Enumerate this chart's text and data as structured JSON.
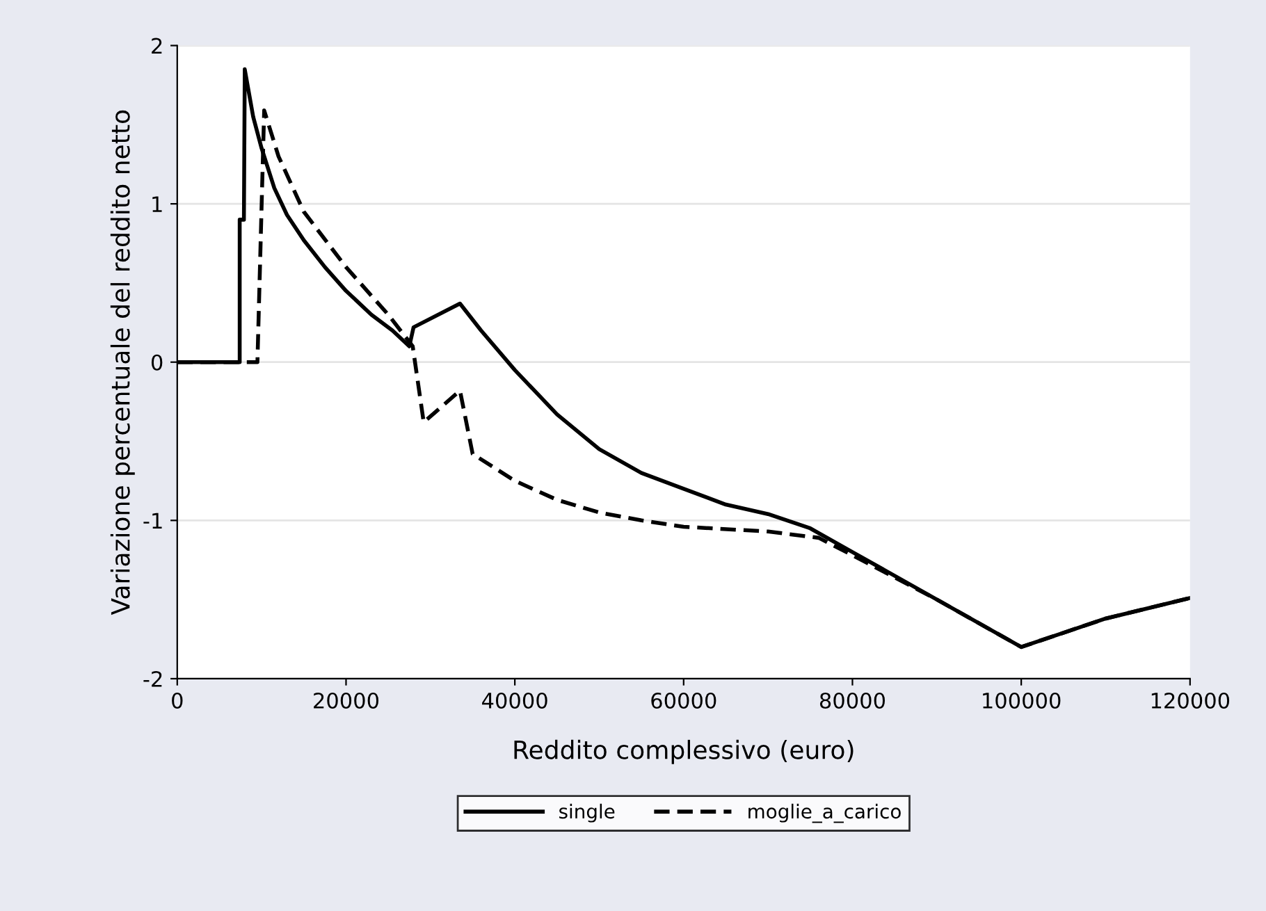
{
  "chart_data": {
    "type": "line",
    "xlabel": "Reddito complessivo (euro)",
    "ylabel": "Variazione percentuale del reddito netto",
    "xlim": [
      0,
      120000
    ],
    "ylim": [
      -2,
      2
    ],
    "xticks": [
      0,
      20000,
      40000,
      60000,
      80000,
      100000,
      120000
    ],
    "yticks": [
      -2,
      -1,
      0,
      1,
      2
    ],
    "grid": "y",
    "legend": "bottom",
    "series": [
      {
        "name": "single",
        "color": "#000000",
        "line_style": "solid",
        "x": [
          0,
          7400,
          7400,
          7900,
          8000,
          9000,
          10000,
          11500,
          13000,
          15000,
          17500,
          20000,
          23000,
          25500,
          27500,
          28000,
          33500,
          36000,
          40000,
          45000,
          50000,
          55000,
          60000,
          65000,
          70000,
          75000,
          80000,
          90000,
          100000,
          110000,
          120000
        ],
        "values": [
          0,
          0,
          0.9,
          0.9,
          1.85,
          1.55,
          1.35,
          1.1,
          0.93,
          0.77,
          0.6,
          0.45,
          0.3,
          0.2,
          0.1,
          0.22,
          0.37,
          0.2,
          -0.05,
          -0.33,
          -0.55,
          -0.7,
          -0.8,
          -0.9,
          -0.96,
          -1.05,
          -1.2,
          -1.5,
          -1.8,
          -1.62,
          -1.49
        ]
      },
      {
        "name": "moglie_a_carico",
        "color": "#000000",
        "line_style": "dashed",
        "x": [
          0,
          9500,
          10300,
          12000,
          15000,
          20000,
          25000,
          27900,
          29200,
          33500,
          35000,
          40000,
          45000,
          50000,
          55000,
          60000,
          70000,
          76000,
          80000,
          90000,
          100000,
          110000,
          120000
        ],
        "values": [
          0,
          0,
          1.59,
          1.3,
          0.95,
          0.6,
          0.3,
          0.1,
          -0.38,
          -0.18,
          -0.58,
          -0.75,
          -0.87,
          -0.95,
          -1.0,
          -1.04,
          -1.07,
          -1.11,
          -1.22,
          -1.5,
          -1.8,
          -1.62,
          -1.49
        ]
      }
    ]
  }
}
